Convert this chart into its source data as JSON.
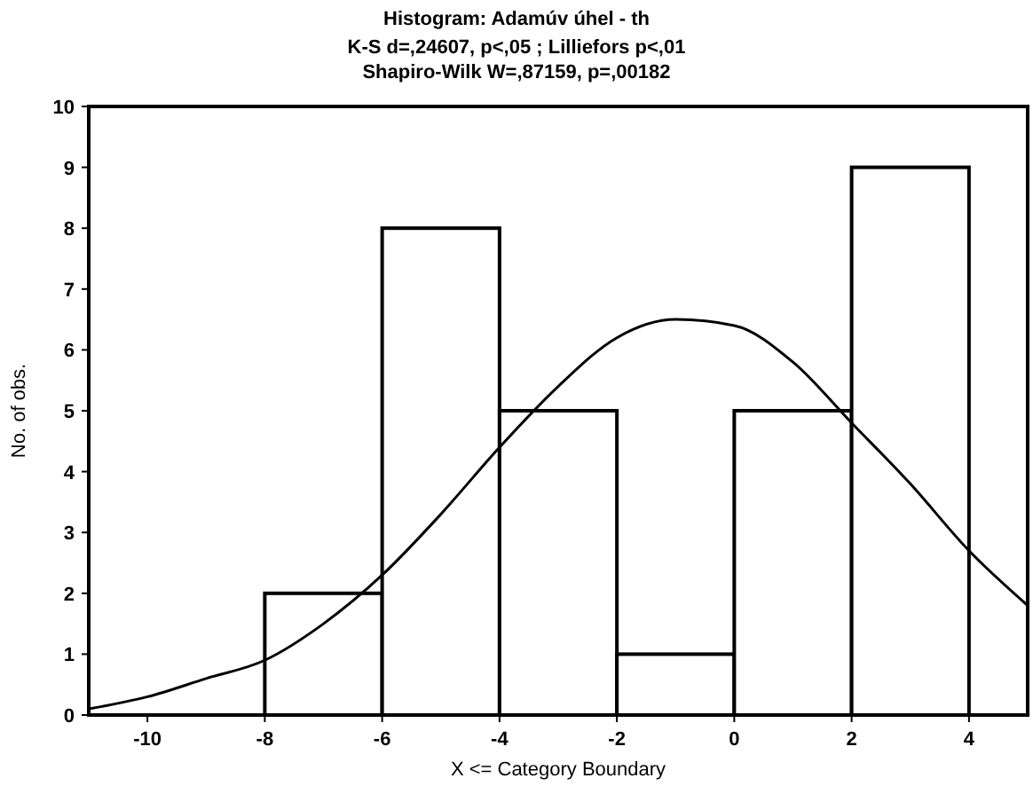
{
  "chart_data": {
    "type": "histogram",
    "title": "Histogram: Adamúv úhel - th",
    "subtitle": "K-S d=,24607, p<,05 ; Lilliefors p<,01",
    "annotations": [
      "Shapiro-Wilk W=,87159, p=,00182"
    ],
    "xlabel": "X <= Category Boundary",
    "ylabel": "No. of obs.",
    "bins": [
      -8,
      -6,
      -4,
      -2,
      0,
      2,
      4
    ],
    "values": [
      2,
      8,
      5,
      1,
      5,
      9
    ],
    "color": "#ffffff",
    "series": [
      {
        "type": "line",
        "color": "#000000",
        "x": [
          -11,
          -10,
          -9,
          -8,
          -7,
          -6,
          -5,
          -4,
          -3,
          -2,
          -1,
          0,
          1,
          2,
          3,
          4,
          5
        ],
        "values": [
          0.1,
          0.3,
          0.6,
          0.9,
          1.5,
          2.3,
          3.3,
          4.4,
          5.4,
          6.2,
          6.5,
          6.4,
          5.8,
          4.8,
          3.8,
          2.7,
          1.8
        ]
      }
    ],
    "xlim": [
      -11,
      5
    ],
    "ylim": [
      0,
      10
    ],
    "xticks": [
      -10,
      -8,
      -6,
      -4,
      -2,
      0,
      2,
      4
    ],
    "yticks": [
      0,
      1,
      2,
      3,
      4,
      5,
      6,
      7,
      8,
      9,
      10
    ],
    "grid": false
  }
}
